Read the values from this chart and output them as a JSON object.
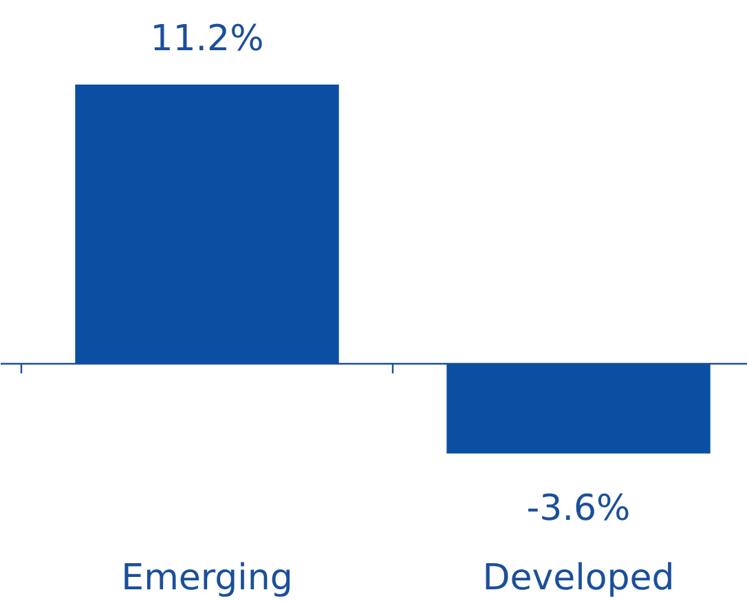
{
  "chart_data": {
    "type": "bar",
    "categories": [
      "Emerging",
      "Developed"
    ],
    "values": [
      11.2,
      -3.6
    ],
    "color": "#0b4fa3",
    "value_labels": [
      "11.2%",
      "-3.6%"
    ],
    "ref_lines": [
      {
        "axis": "y",
        "value": 0,
        "color": "#1b4f9b"
      }
    ]
  }
}
